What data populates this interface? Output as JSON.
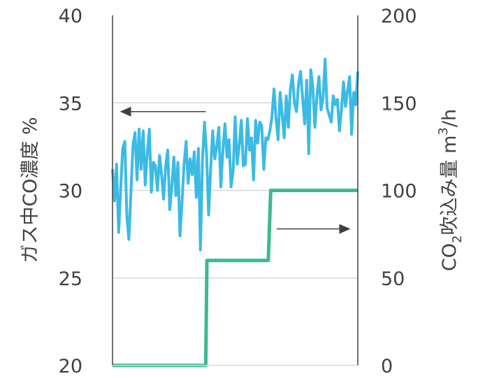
{
  "chart_data": {
    "type": "line",
    "title": "",
    "xlabel": "",
    "grid": true,
    "y_left": {
      "label": "ガス中CO濃度 %",
      "range": [
        20,
        40
      ],
      "ticks": [
        "40",
        "35",
        "30",
        "25",
        "20"
      ]
    },
    "y_right": {
      "label_main": "CO",
      "label_sub": "2",
      "label_rest": "吹込み量 m",
      "label_sup": "3",
      "label_end": "/h",
      "range": [
        0,
        200
      ],
      "ticks": [
        "200",
        "150",
        "100",
        "50",
        "0"
      ]
    },
    "colors": {
      "co_line": "#3BBBE4",
      "co2_line": "#3DB894",
      "axis": "#404040",
      "grid": "#D9D9D9",
      "arrow": "#404040"
    },
    "series": [
      {
        "axis": "left",
        "values": [
          31.2,
          29.4,
          31.5,
          27.6,
          30.1,
          32.4,
          32.8,
          28.5,
          27.2,
          29.8,
          32.6,
          33.3,
          30.6,
          33.5,
          31.2,
          33.4,
          30.3,
          32.1,
          33.5,
          29.9,
          31.6,
          31.4,
          30.0,
          32.0,
          30.9,
          29.5,
          31.4,
          32.3,
          28.9,
          30.2,
          31.9,
          29.7,
          31.6,
          27.4,
          29.3,
          31.5,
          32.8,
          30.4,
          31.8,
          30.9,
          32.2,
          29.6,
          32.4,
          26.6,
          31.7,
          33.9,
          32.1,
          28.6,
          31.2,
          33.4,
          31.8,
          32.5,
          33.6,
          30.2,
          32.3,
          33.8,
          31.9,
          32.9,
          30.2,
          31.1,
          34.2,
          31.5,
          32.6,
          34.0,
          31.4,
          31.5,
          34.1,
          32.3,
          33.0,
          30.6,
          34.0,
          32.7,
          33.9,
          33.7,
          31.2,
          33.0,
          32.9,
          33.4,
          34.2,
          35.8,
          34.1,
          32.9,
          35.6,
          34.3,
          33.0,
          35.4,
          33.6,
          35.8,
          36.6,
          35.0,
          34.5,
          36.1,
          36.8,
          35.3,
          33.8,
          36.3,
          32.1,
          36.9,
          35.9,
          33.6,
          35.4,
          36.5,
          34.6,
          35.3,
          37.5,
          34.7,
          34.3,
          33.9,
          35.4,
          34.9,
          35.2,
          33.4,
          34.6,
          36.2,
          34.8,
          35.7,
          36.5,
          33.2,
          35.6,
          34.9,
          36.8
        ]
      },
      {
        "axis": "right",
        "steps": [
          {
            "x_from": 0.0,
            "x_to": 0.38,
            "value": 0
          },
          {
            "x_from": 0.385,
            "x_to": 0.635,
            "value": 60
          },
          {
            "x_from": 0.645,
            "x_to": 1.0,
            "value": 100
          }
        ]
      }
    ],
    "annotations": [
      {
        "type": "arrow",
        "direction": "left",
        "value_axis": "left",
        "value": 34.5,
        "x_from": 0.38,
        "x_to": 0.03
      },
      {
        "type": "arrow",
        "direction": "right",
        "value_axis": "right",
        "value": 78,
        "x_from": 0.67,
        "x_to": 0.97
      }
    ]
  }
}
